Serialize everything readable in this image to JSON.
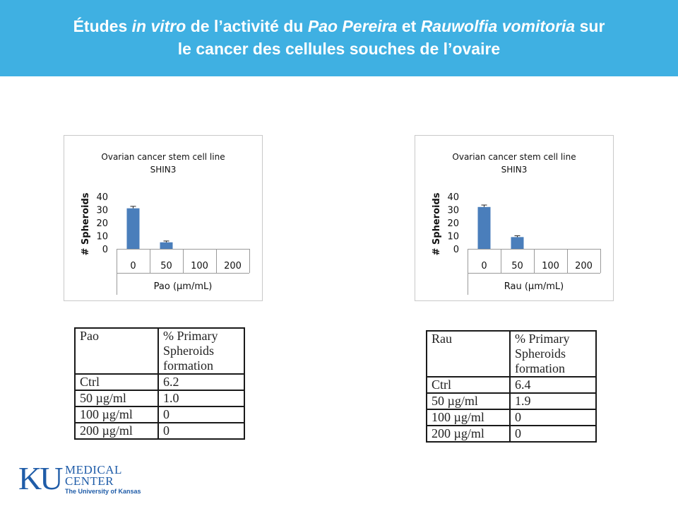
{
  "header": {
    "line1": {
      "a": "Études ",
      "b": "in vitro",
      "c": " de l’activité du ",
      "d": "Pao Pereira",
      "e": " et ",
      "f": "Rauwolfia vomitoria",
      "g": " sur"
    },
    "line2": "le cancer des cellules souches de l’ovaire"
  },
  "chart_data": [
    {
      "type": "bar",
      "title": "Ovarian cancer stem cell line",
      "subtitle": "SHIN3",
      "xlabel": "Pao (µm/mL)",
      "ylabel": "# Spheroids",
      "categories": [
        "0",
        "50",
        "100",
        "200"
      ],
      "values": [
        31,
        5,
        0,
        0
      ],
      "errors": [
        1.5,
        1,
        0,
        0
      ],
      "ylim": [
        0,
        40
      ],
      "yticks": [
        0,
        10,
        20,
        30,
        40
      ],
      "bar_color": "#4a7ebb"
    },
    {
      "type": "bar",
      "title": "Ovarian cancer stem cell line",
      "subtitle": "SHIN3",
      "xlabel": "Rau (µm/mL)",
      "ylabel": "# Spheroids",
      "categories": [
        "0",
        "50",
        "100",
        "200"
      ],
      "values": [
        32,
        9,
        0,
        0
      ],
      "errors": [
        1.5,
        1,
        0,
        0
      ],
      "ylim": [
        0,
        40
      ],
      "yticks": [
        0,
        10,
        20,
        30,
        40
      ],
      "bar_color": "#4a7ebb"
    }
  ],
  "tables": [
    {
      "header": [
        "Pao",
        "% Primary Spheroids formation"
      ],
      "rows": [
        [
          "Ctrl",
          "6.2"
        ],
        [
          "50 µg/ml",
          "1.0"
        ],
        [
          "100 µg/ml",
          "0"
        ],
        [
          "200 µg/ml",
          "0"
        ]
      ]
    },
    {
      "header": [
        "Rau",
        "% Primary Spheroids formation"
      ],
      "rows": [
        [
          "Ctrl",
          "6.4"
        ],
        [
          "50 µg/ml",
          "1.9"
        ],
        [
          "100 µg/ml",
          "0"
        ],
        [
          "200 µg/ml",
          "0"
        ]
      ]
    }
  ],
  "logo": {
    "ku": "KU",
    "line1": "MEDICAL",
    "line2": "CENTER",
    "line3": "The University of Kansas",
    "color": "#1f5ca8"
  }
}
